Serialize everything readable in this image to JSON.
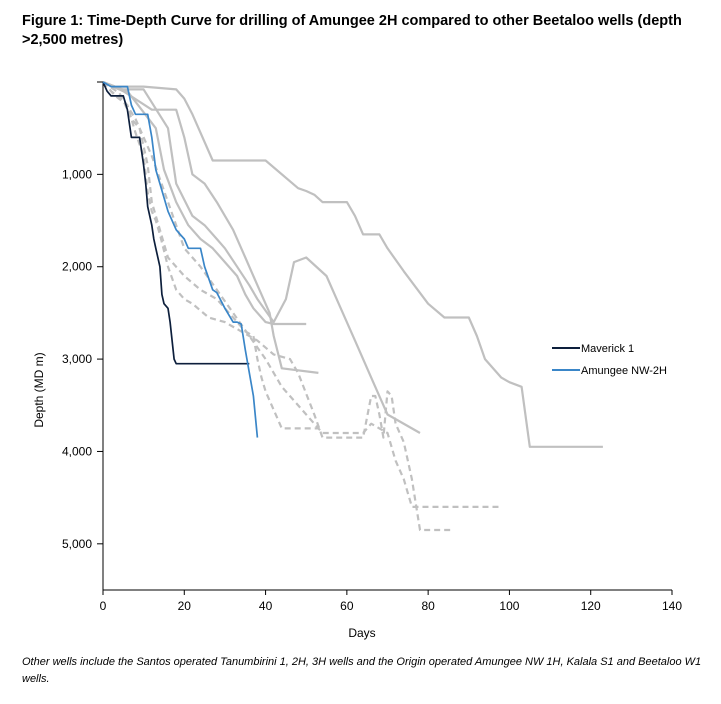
{
  "title": "Figure 1: Time-Depth Curve for drilling of Amungee 2H compared to other Beetaloo wells (depth >2,500 metres)",
  "footnote": "Other wells include the Santos operated Tanumbirini 1, 2H, 3H wells and the Origin operated Amungee NW 1H, Kalala S1 and Beetaloo W1 wells.",
  "chart_data": {
    "type": "line",
    "xlabel": "Days",
    "ylabel": "Depth (MD m)",
    "xlim": [
      0,
      140
    ],
    "ylim": [
      0,
      5500
    ],
    "y_reversed": true,
    "xticks": [
      0,
      20,
      40,
      60,
      80,
      100,
      120,
      140
    ],
    "xtick_labels": [
      "0",
      "20",
      "40",
      "60",
      "80",
      "100",
      "120",
      "140"
    ],
    "yticks": [
      1000,
      2000,
      3000,
      4000,
      5000
    ],
    "ytick_labels": [
      "1,000",
      "2,000",
      "3,000",
      "4,000",
      "5,000"
    ],
    "grid": false,
    "legend_position": "right",
    "colors": {
      "maverick": "#0d1f3c",
      "amungee": "#3a86c8",
      "other": "#c0c0c0"
    },
    "series": [
      {
        "name": "Maverick 1",
        "legend": true,
        "color": "#0d1f3c",
        "dashed": false,
        "x": [
          0,
          1,
          2,
          5,
          6,
          7,
          8,
          9,
          10,
          10.5,
          11,
          12,
          12.5,
          13,
          14,
          14.5,
          15,
          16,
          16.5,
          17,
          17.5,
          18,
          20,
          30,
          36
        ],
        "y": [
          0,
          100,
          150,
          150,
          300,
          600,
          600,
          600,
          900,
          1100,
          1350,
          1550,
          1700,
          1800,
          2000,
          2300,
          2400,
          2450,
          2600,
          2800,
          3000,
          3050,
          3050,
          3050,
          3050
        ]
      },
      {
        "name": "Amungee NW-2H",
        "legend": true,
        "color": "#3a86c8",
        "dashed": false,
        "x": [
          0,
          2,
          6,
          7,
          8,
          11,
          12,
          13,
          14,
          16,
          18,
          19,
          20,
          21,
          24,
          25,
          27,
          28,
          30,
          32,
          33,
          34,
          35,
          37,
          38
        ],
        "y": [
          0,
          50,
          50,
          250,
          350,
          350,
          600,
          950,
          1100,
          1400,
          1600,
          1650,
          1700,
          1800,
          1800,
          2000,
          2250,
          2280,
          2450,
          2600,
          2600,
          2620,
          2900,
          3400,
          3850
        ]
      },
      {
        "name": "",
        "legend": false,
        "color": "#c0c0c0",
        "dashed": false,
        "x": [
          0,
          3,
          10,
          18,
          20,
          22,
          27,
          40,
          48,
          50,
          52,
          54,
          60,
          62,
          64,
          68,
          70,
          74,
          80,
          84,
          90,
          92,
          94,
          98,
          100,
          103,
          105,
          123
        ],
        "y": [
          0,
          50,
          50,
          80,
          180,
          350,
          850,
          850,
          1150,
          1180,
          1220,
          1300,
          1300,
          1450,
          1650,
          1650,
          1800,
          2050,
          2400,
          2550,
          2550,
          2750,
          3000,
          3200,
          3250,
          3300,
          3950,
          3950
        ]
      },
      {
        "name": "",
        "legend": false,
        "color": "#c0c0c0",
        "dashed": false,
        "x": [
          0,
          4,
          10,
          16,
          18,
          22,
          25,
          28,
          30,
          33,
          36,
          38,
          42,
          45,
          47,
          50,
          55,
          58,
          62,
          66,
          70,
          78
        ],
        "y": [
          0,
          80,
          80,
          500,
          1100,
          1450,
          1550,
          1700,
          1800,
          2000,
          2200,
          2350,
          2600,
          2350,
          1950,
          1900,
          2100,
          2400,
          2800,
          3200,
          3600,
          3800
        ]
      },
      {
        "name": "",
        "legend": false,
        "color": "#c0c0c0",
        "dashed": false,
        "x": [
          0,
          5,
          12,
          18,
          20,
          22,
          25,
          28,
          32,
          35,
          38,
          41,
          42,
          44,
          53
        ],
        "y": [
          0,
          100,
          300,
          300,
          600,
          1000,
          1100,
          1300,
          1600,
          1900,
          2200,
          2500,
          2750,
          3100,
          3150
        ]
      },
      {
        "name": "",
        "legend": false,
        "color": "#c0c0c0",
        "dashed": false,
        "x": [
          0,
          6,
          13,
          15,
          18,
          21,
          24,
          27,
          30,
          33,
          35,
          37,
          40,
          42,
          44,
          50
        ],
        "y": [
          0,
          100,
          500,
          950,
          1300,
          1550,
          1700,
          1800,
          1950,
          2100,
          2300,
          2450,
          2600,
          2620,
          2620,
          2620
        ]
      },
      {
        "name": "",
        "legend": false,
        "color": "#c0c0c0",
        "dashed": true,
        "x": [
          0,
          2,
          5,
          7,
          9,
          11,
          12,
          14,
          16,
          20,
          24,
          28,
          32,
          35,
          37,
          38,
          39,
          40,
          42,
          44,
          46,
          48,
          50,
          53
        ],
        "y": [
          0,
          100,
          200,
          400,
          500,
          900,
          1300,
          1600,
          1900,
          2100,
          2250,
          2350,
          2550,
          2700,
          2750,
          3000,
          3200,
          3350,
          3550,
          3750,
          3750,
          3750,
          3750,
          3750
        ]
      },
      {
        "name": "",
        "legend": false,
        "color": "#c0c0c0",
        "dashed": true,
        "x": [
          0,
          3,
          6,
          8,
          10,
          11,
          12,
          13,
          14,
          16,
          18,
          20,
          22,
          26,
          30,
          34,
          38,
          42,
          46,
          48,
          52,
          54,
          60,
          64,
          66,
          67,
          68,
          69,
          70,
          71,
          72,
          74,
          76,
          78,
          86
        ],
        "y": [
          0,
          150,
          250,
          550,
          800,
          1200,
          1400,
          1500,
          1650,
          2000,
          2250,
          2350,
          2400,
          2550,
          2600,
          2700,
          2800,
          2950,
          3000,
          3150,
          3600,
          3850,
          3850,
          3850,
          3400,
          3400,
          3600,
          3850,
          3350,
          3400,
          3700,
          3900,
          4300,
          4850,
          4850
        ]
      },
      {
        "name": "",
        "legend": false,
        "color": "#c0c0c0",
        "dashed": true,
        "x": [
          0,
          4,
          8,
          12,
          16,
          20,
          24,
          28,
          32,
          36,
          40,
          42,
          44,
          50,
          54,
          58,
          60,
          62,
          64,
          66,
          68,
          70,
          72,
          74,
          76,
          98
        ],
        "y": [
          0,
          120,
          400,
          800,
          1300,
          1800,
          2000,
          2250,
          2500,
          2750,
          3000,
          3150,
          3300,
          3600,
          3800,
          3800,
          3800,
          3800,
          3800,
          3700,
          3750,
          3800,
          4100,
          4300,
          4600,
          4600
        ]
      }
    ]
  }
}
